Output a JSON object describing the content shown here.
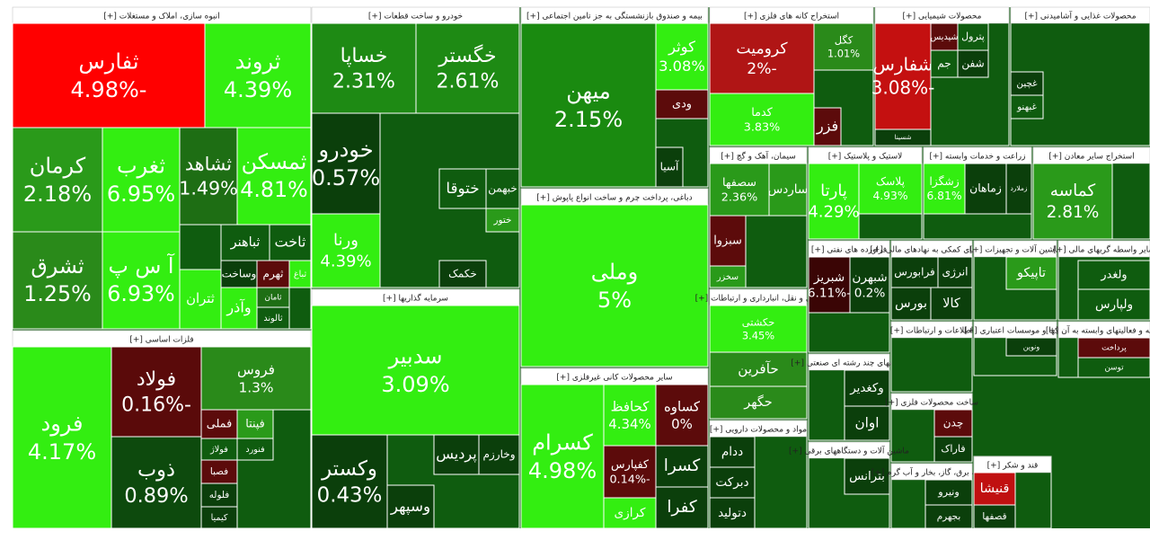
{
  "chart_data": {
    "type": "treemap",
    "sectors": [
      {
        "name": "انبوه سازی، املاک و مستغلات [+]",
        "tiles": [
          {
            "name": "ثفارس",
            "value": -4.98,
            "value_label": "-4.98%",
            "color": "#ff0000"
          },
          {
            "name": "ثروند",
            "value": 4.39,
            "value_label": "4.39%",
            "color": "#33ee11"
          },
          {
            "name": "کرمان",
            "value": 2.18,
            "value_label": "2.18%",
            "color": "#2a9a1a"
          },
          {
            "name": "ثشرق",
            "value": 1.25,
            "value_label": "1.25%",
            "color": "#2a8a1a"
          },
          {
            "name": "ثغرب",
            "value": 6.95,
            "value_label": "6.95%",
            "color": "#33ee11"
          },
          {
            "name": "آ س پ",
            "value": 6.93,
            "value_label": "6.93%",
            "color": "#33ee11"
          },
          {
            "name": "ثشاهد",
            "value": 1.49,
            "value_label": "1.49%",
            "color": "#1e6e14"
          },
          {
            "name": "ثمسکن",
            "value": 4.81,
            "value_label": "4.81%",
            "color": "#33ee11"
          },
          {
            "name": "ثباهنر",
            "color": "#0f5c0f"
          },
          {
            "name": "ثاخت",
            "color": "#0f5c0f"
          },
          {
            "name": "وساخت",
            "color": "#0b3f0b"
          },
          {
            "name": "ثهرم",
            "color": "#5c0b0b"
          },
          {
            "name": "ثباغ",
            "color": "#33ee11"
          },
          {
            "name": "ثامان",
            "color": "#1e6e14"
          },
          {
            "name": "ثالوند",
            "color": "#0f5c0f"
          },
          {
            "name": "وآذر",
            "color": "#33ee11"
          },
          {
            "name": "ثتران",
            "color": "#33ee11"
          }
        ]
      },
      {
        "name": "فلزات اساسی [+]",
        "tiles": [
          {
            "name": "فرود",
            "value": 4.17,
            "value_label": "4.17%",
            "color": "#33ee11"
          },
          {
            "name": "فولاد",
            "value": -0.16,
            "value_label": "-0.16%",
            "color": "#5a0a0a"
          },
          {
            "name": "ذوب",
            "value": 0.89,
            "value_label": "0.89%",
            "color": "#0d4a0d"
          },
          {
            "name": "فروس",
            "value": 1.3,
            "value_label": "1.3%",
            "color": "#2a8a1a"
          },
          {
            "name": "فملی",
            "color": "#5c0b0b"
          },
          {
            "name": "فپنتا",
            "color": "#2a9a1a"
          },
          {
            "name": "فولاژ",
            "color": "#0f5c0f"
          },
          {
            "name": "فنورد",
            "color": "#0f5c0f"
          },
          {
            "name": "فصبا",
            "color": "#5c0b0b"
          },
          {
            "name": "فلوله",
            "color": "#0b3f0b"
          },
          {
            "name": "کیمیا",
            "color": "#0b3f0b"
          }
        ]
      },
      {
        "name": "خودرو و ساخت قطعات [+]",
        "tiles": [
          {
            "name": "خساپا",
            "value": 2.31,
            "value_label": "2.31%",
            "color": "#1e8a14"
          },
          {
            "name": "خگستر",
            "value": 2.61,
            "value_label": "2.61%",
            "color": "#1e8a14"
          },
          {
            "name": "خودرو",
            "value": 0.57,
            "value_label": "0.57%",
            "color": "#0b3f0b"
          },
          {
            "name": "ورنا",
            "value": 4.39,
            "value_label": "4.39%",
            "color": "#33ee11"
          },
          {
            "name": "ختوقا",
            "color": "#0f5c0f"
          },
          {
            "name": "خبهمن",
            "color": "#0f5c0f"
          },
          {
            "name": "ختور",
            "color": "#2a9a1a"
          },
          {
            "name": "خکمک",
            "color": "#0b3f0b"
          }
        ]
      },
      {
        "name": "سرمایه گذاریها [+]",
        "tiles": [
          {
            "name": "سدبیر",
            "value": 3.09,
            "value_label": "3.09%",
            "color": "#33ee11"
          },
          {
            "name": "وکستر",
            "value": 0.43,
            "value_label": "0.43%",
            "color": "#0b3f0b"
          },
          {
            "name": "وسپهر",
            "color": "#0b3f0b"
          },
          {
            "name": "پردیس",
            "color": "#0b3f0b"
          },
          {
            "name": "وخارزم",
            "color": "#0b3f0b"
          }
        ]
      },
      {
        "name": "بیمه و صندوق بازنشستگی به جز تامین اجتماعی [+]",
        "tiles": [
          {
            "name": "میهن",
            "value": 2.15,
            "value_label": "2.15%",
            "color": "#1a8a10"
          },
          {
            "name": "کوثر",
            "value": 3.08,
            "value_label": "3.08%",
            "color": "#33ee11"
          },
          {
            "name": "ودی",
            "color": "#5c0b0b"
          },
          {
            "name": "آسیا",
            "color": "#0b3f0b"
          }
        ]
      },
      {
        "name": "دباغی، پرداخت چرم و ساخت انواع پاپوش [+]",
        "tiles": [
          {
            "name": "وملی",
            "value": 5,
            "value_label": "5%",
            "color": "#33ee11"
          }
        ]
      },
      {
        "name": "سایر محصولات کانی غیرفلزی [+]",
        "tiles": [
          {
            "name": "کسرام",
            "value": 4.98,
            "value_label": "4.98%",
            "color": "#33ee11"
          },
          {
            "name": "کحافظ",
            "value": 4.34,
            "value_label": "4.34%",
            "color": "#33ee11"
          },
          {
            "name": "کساوه",
            "value": 0,
            "value_label": "0%",
            "color": "#5c0b0b"
          },
          {
            "name": "کفپارس",
            "value": -0.14,
            "value_label": "-0.14%",
            "color": "#5c0b0b"
          },
          {
            "name": "کسرا",
            "color": "#0b3f0b"
          },
          {
            "name": "کفرا",
            "color": "#0b3f0b"
          },
          {
            "name": "کرازی",
            "color": "#33ee11"
          }
        ]
      },
      {
        "name": "استخراج کانه های فلزی [+]",
        "tiles": [
          {
            "name": "کرومیت",
            "value": -2,
            "value_label": "-2%",
            "color": "#b01515"
          },
          {
            "name": "کگل",
            "value": 1.01,
            "value_label": "1.01%",
            "color": "#2a8a1a"
          },
          {
            "name": "کدما",
            "value": 3.83,
            "value_label": "3.83%",
            "color": "#33ee11"
          },
          {
            "name": "فزر",
            "color": "#5c0b0b"
          }
        ]
      },
      {
        "name": "محصولات شیمیایی [+]",
        "tiles": [
          {
            "name": "شفارس",
            "value": -3.08,
            "value_label": "-3.08%",
            "color": "#c41010"
          },
          {
            "name": "شسینا",
            "color": "#0b3f0b"
          },
          {
            "name": "شپدیس",
            "color": "#5c0b0b"
          },
          {
            "name": "پترول",
            "color": "#0f5c0f"
          },
          {
            "name": "جم",
            "color": "#0f5c0f"
          },
          {
            "name": "شفن",
            "color": "#0b3f0b"
          }
        ]
      },
      {
        "name": "محصولات غذایی و آشامیدنی [+]",
        "tiles": [
          {
            "name": "غچین",
            "color": "#0b3f0b"
          },
          {
            "name": "غبهنو",
            "color": "#0f5c0f"
          }
        ]
      },
      {
        "name": "سیمان، آهک و گچ [+]",
        "tiles": [
          {
            "name": "سصفها",
            "value": 2.36,
            "value_label": "2.36%",
            "color": "#2a9a1a"
          },
          {
            "name": "ساردس",
            "color": "#2a9a1a"
          },
          {
            "name": "سبزوا",
            "color": "#5c0b0b"
          },
          {
            "name": "سخزر",
            "color": "#2a9a1a"
          }
        ]
      },
      {
        "name": "حمل و نقل، انبارداری و ارتباطات [+]",
        "tiles": [
          {
            "name": "حکشتی",
            "value": 3.45,
            "value_label": "3.45%",
            "color": "#33ee11"
          },
          {
            "name": "حآفرین",
            "color": "#2a8a1a"
          },
          {
            "name": "حگهر",
            "color": "#2a8a1a"
          }
        ]
      },
      {
        "name": "مواد و محصولات دارویی [+]",
        "tiles": [
          {
            "name": "ددام",
            "color": "#0b3f0b"
          },
          {
            "name": "دبرکت",
            "color": "#0b3f0b"
          },
          {
            "name": "دتولید",
            "color": "#0b3f0b"
          }
        ]
      },
      {
        "name": "لاستیک و پلاستیک [+]",
        "tiles": [
          {
            "name": "پارتا",
            "value": 4.29,
            "value_label": "4.29%",
            "color": "#33ee11"
          },
          {
            "name": "پلاسک",
            "value": 4.93,
            "value_label": "4.93%",
            "color": "#33ee11"
          }
        ]
      },
      {
        "name": "زراعت و خدمات وابسته [+]",
        "tiles": [
          {
            "name": "زشگزا",
            "value": 6.81,
            "value_label": "6.81%",
            "color": "#33ee11"
          },
          {
            "name": "زماهان",
            "color": "#0b3f0b"
          },
          {
            "name": "زملارد",
            "color": "#0b3f0b"
          }
        ]
      },
      {
        "name": "استخراج سایر معادن [+]",
        "tiles": [
          {
            "name": "کماسه",
            "value": 2.81,
            "value_label": "2.81%",
            "color": "#2a9a1a"
          }
        ]
      },
      {
        "name": "فراورده های نفتی [+]",
        "tiles": [
          {
            "name": "شبریز",
            "value": -6.11,
            "value_label": "-6.11%",
            "color": "#3a0505"
          },
          {
            "name": "شبهرن",
            "value": 0.2,
            "value_label": "0.2%",
            "color": "#0b3f0b"
          }
        ]
      },
      {
        "name": "فعالیتهای کمکی به نهادهای مالی [+]",
        "tiles": [
          {
            "name": "فرابورس",
            "color": "#0b3f0b"
          },
          {
            "name": "انرژی",
            "color": "#0b3f0b"
          },
          {
            "name": "بورس",
            "color": "#0b3f0b"
          },
          {
            "name": "کالا",
            "color": "#0b3f0b"
          }
        ]
      },
      {
        "name": "ماشین آلات و تجهیزات [+]",
        "tiles": [
          {
            "name": "تاپیکو",
            "color": "#2a9a1a"
          }
        ]
      },
      {
        "name": "سایر واسطه گریهای مالی [+]",
        "tiles": [
          {
            "name": "ولغدر",
            "color": "#0f5c0f"
          },
          {
            "name": "ولپارس",
            "color": "#0f5c0f"
          }
        ]
      },
      {
        "name": "شرکتهای چند رشته ای صنعتی [+]",
        "tiles": [
          {
            "name": "وکغدیر",
            "color": "#0b3f0b"
          },
          {
            "name": "اوان",
            "color": "#0b3f0b"
          }
        ]
      },
      {
        "name": "اطلاعات و ارتباطات [+]",
        "tiles": []
      },
      {
        "name": "بانکها و موسسات اعتباری [+]",
        "tiles": [
          {
            "name": "ونوین",
            "color": "#0b3f0b"
          }
        ]
      },
      {
        "name": "رایانه و فعالیتهای وابسته به آن [+]",
        "tiles": [
          {
            "name": "پرداخت",
            "color": "#5c0b0b"
          },
          {
            "name": "توسن",
            "color": "#0f5c0f"
          }
        ]
      },
      {
        "name": "ساخت محصولات فلزی [+]",
        "tiles": [
          {
            "name": "چدن",
            "color": "#5c0b0b"
          },
          {
            "name": "فاراک",
            "color": "#0b3f0b"
          }
        ]
      },
      {
        "name": "ماشین آلات و دستگاههای برقی [+]",
        "tiles": [
          {
            "name": "بترانس",
            "color": "#0b3f0b"
          }
        ]
      },
      {
        "name": "عرضه برق، گاز، بخار و آب گرم [+]",
        "tiles": [
          {
            "name": "ونیرو",
            "color": "#0b3f0b"
          },
          {
            "name": "بجهرم",
            "color": "#0b3f0b"
          }
        ]
      },
      {
        "name": "قند و شکر [+]",
        "tiles": [
          {
            "name": "قنیشا",
            "color": "#c01010"
          },
          {
            "name": "قصفها",
            "color": "#0b3f0b"
          }
        ]
      }
    ]
  }
}
